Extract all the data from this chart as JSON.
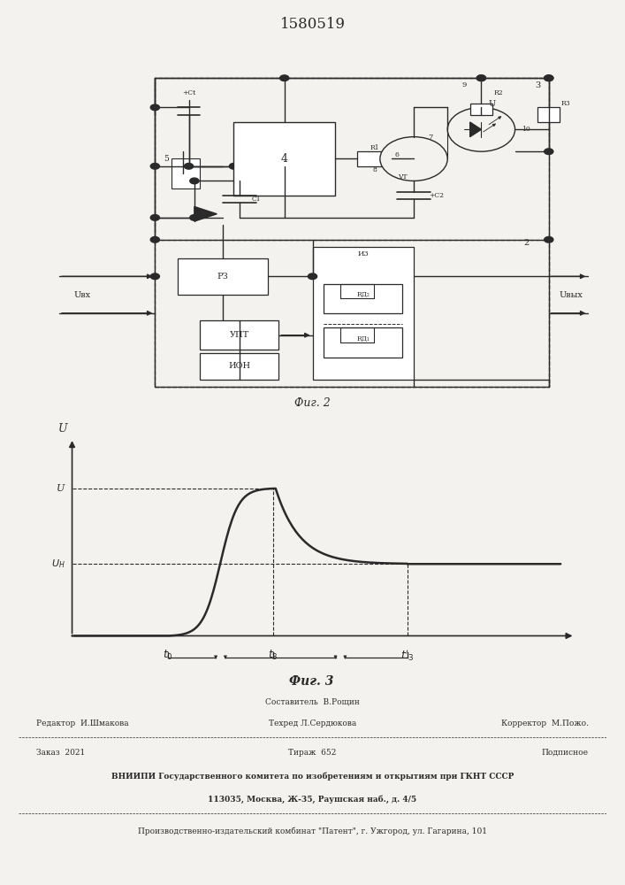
{
  "title": "1580519",
  "fig2_caption": "Фиг. 2",
  "fig3_caption": "Фиг. 3",
  "U_level": 0.82,
  "Un_level": 0.4,
  "t0": 0.2,
  "t3": 0.42,
  "t3p": 0.7,
  "footer_sestavitel": "Составитель  В.Рощин",
  "footer_line1_left": "Редактор  И.Шмакова",
  "footer_line1_center": "Техред Л.Сердюкова",
  "footer_line1_right": "Корректор  М.Пожо.",
  "footer_line2_left": "Заказ  2021",
  "footer_line2_center": "Тираж  652",
  "footer_line2_right": "Подписное",
  "footer_line3": "ВНИИПИ Государственного комитета по изобретениям и открытиям при ГКНТ СССР",
  "footer_line4": "113035, Москва, Ж-35, Раушская наб., д. 4/5",
  "footer_line5": "Производственно-издательский комбинат \"Патент\", г. Ужгород, ул. Гагарина, 101",
  "bg_color": "#f4f2ee",
  "line_color": "#2a2a2a"
}
